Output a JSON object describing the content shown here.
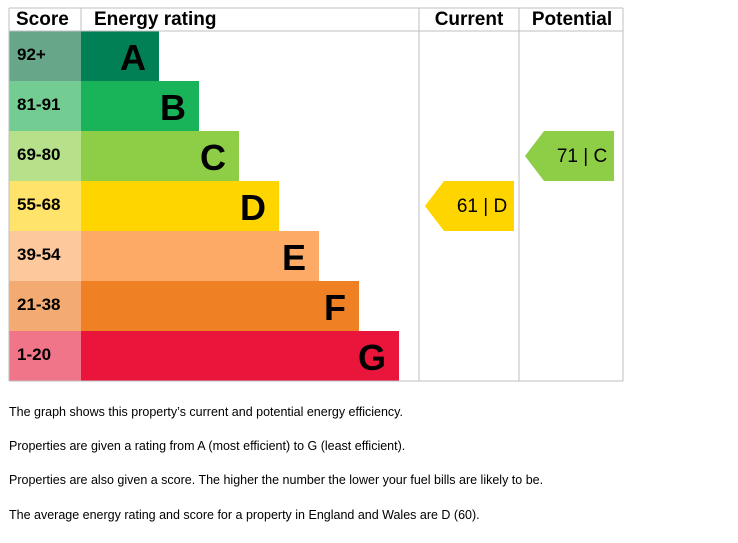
{
  "chart_data": {
    "type": "bar",
    "headers": {
      "score": "Score",
      "rating": "Energy rating",
      "current": "Current",
      "potential": "Potential"
    },
    "bands": [
      {
        "letter": "A",
        "range": "92+",
        "color": "#008054",
        "score_color": "#68a689"
      },
      {
        "letter": "B",
        "range": "81-91",
        "color": "#19b459",
        "score_color": "#73cd92"
      },
      {
        "letter": "C",
        "range": "69-80",
        "color": "#8dce46",
        "score_color": "#b6e08a"
      },
      {
        "letter": "D",
        "range": "55-68",
        "color": "#ffd500",
        "score_color": "#ffe36a"
      },
      {
        "letter": "E",
        "range": "39-54",
        "color": "#fcaa65",
        "score_color": "#fdc99c"
      },
      {
        "letter": "F",
        "range": "21-38",
        "color": "#ef8023",
        "score_color": "#f3ab72"
      },
      {
        "letter": "G",
        "range": "1-20",
        "color": "#e9153b",
        "score_color": "#f07588"
      }
    ],
    "current": {
      "score": 61,
      "rating": "D",
      "label": "61 |  D",
      "color": "#ffd500"
    },
    "potential": {
      "score": 71,
      "rating": "C",
      "label": "71 |  C",
      "color": "#8dce46"
    }
  },
  "description": {
    "line1": "The graph shows this property’s current and potential energy efficiency.",
    "line2": "Properties are given a rating from A (most efficient) to G (least efficient).",
    "line3": "Properties are also given a score. The higher the number the lower your fuel bills are likely to be.",
    "line4": "The average energy rating and score for a property in England and Wales are D (60)."
  }
}
